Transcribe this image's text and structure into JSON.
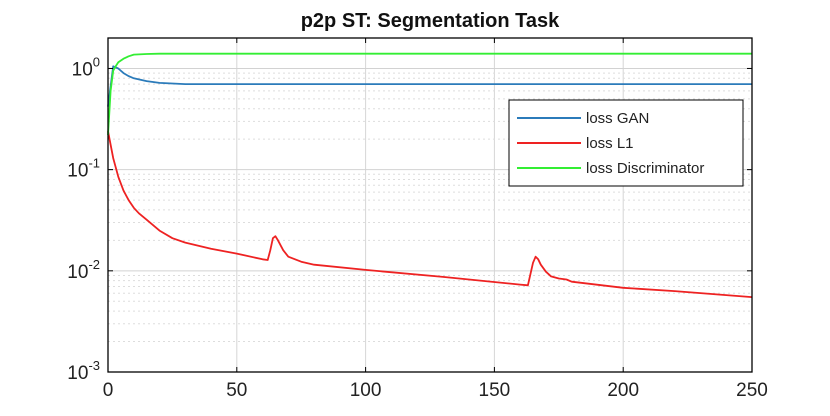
{
  "chart_data": {
    "type": "line",
    "title": "p2p ST: Segmentation Task",
    "xlabel": "",
    "ylabel": "",
    "xlim": [
      0,
      250
    ],
    "ylim": [
      0.001,
      2
    ],
    "yscale": "log",
    "x_ticks": [
      0,
      50,
      100,
      150,
      200,
      250
    ],
    "x_tick_labels": [
      "0",
      "50",
      "100",
      "150",
      "200",
      "250"
    ],
    "y_ticks": [
      {
        "value": 1,
        "base": "10",
        "exp": "0"
      },
      {
        "value": 0.1,
        "base": "10",
        "exp": "-1"
      },
      {
        "value": 0.01,
        "base": "10",
        "exp": "-2"
      },
      {
        "value": 0.001,
        "base": "10",
        "exp": "-3"
      }
    ],
    "grid": true,
    "legend_position": "right",
    "series": [
      {
        "name": "loss GAN",
        "color": "#2b7bba",
        "x": [
          0,
          2,
          4,
          6,
          8,
          10,
          15,
          20,
          25,
          30,
          50,
          100,
          150,
          200,
          250
        ],
        "y": [
          0.42,
          1.05,
          1.0,
          0.9,
          0.84,
          0.8,
          0.75,
          0.72,
          0.71,
          0.7,
          0.7,
          0.7,
          0.7,
          0.7,
          0.7
        ]
      },
      {
        "name": "loss L1",
        "color": "#ee2222",
        "x": [
          0,
          2,
          4,
          6,
          8,
          10,
          12,
          15,
          20,
          25,
          30,
          40,
          50,
          60,
          62,
          63,
          64,
          65,
          66,
          68,
          70,
          75,
          80,
          100,
          130,
          160,
          163,
          165,
          166,
          167,
          168,
          170,
          172,
          175,
          178,
          180,
          200,
          220,
          250
        ],
        "y": [
          0.24,
          0.13,
          0.085,
          0.062,
          0.05,
          0.042,
          0.037,
          0.032,
          0.025,
          0.021,
          0.019,
          0.0165,
          0.0148,
          0.013,
          0.0128,
          0.016,
          0.021,
          0.022,
          0.02,
          0.016,
          0.0138,
          0.0123,
          0.0115,
          0.0102,
          0.0087,
          0.0073,
          0.0072,
          0.012,
          0.0138,
          0.013,
          0.0115,
          0.0098,
          0.0088,
          0.0084,
          0.0082,
          0.0078,
          0.0068,
          0.0063,
          0.0055
        ]
      },
      {
        "name": "loss Discriminator",
        "color": "#33ee33",
        "x": [
          0,
          1,
          2,
          3,
          4,
          6,
          8,
          10,
          15,
          20,
          50,
          100,
          150,
          200,
          250
        ],
        "y": [
          0.22,
          0.6,
          0.95,
          1.05,
          1.15,
          1.25,
          1.32,
          1.37,
          1.39,
          1.4,
          1.4,
          1.4,
          1.4,
          1.4,
          1.4
        ]
      }
    ]
  }
}
